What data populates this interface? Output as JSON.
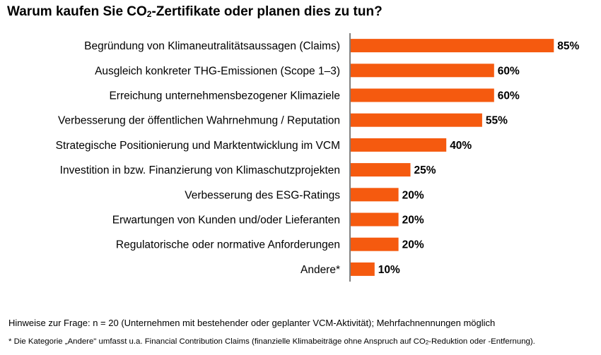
{
  "title_parts": {
    "pre": "Warum kaufen Sie CO",
    "sub": "2",
    "post": "-Zertifikate oder planen dies zu tun?"
  },
  "chart_data": {
    "type": "bar",
    "orientation": "horizontal",
    "title": "Warum kaufen Sie CO₂-Zertifikate oder planen dies zu tun?",
    "categories": [
      "Begründung von Klimaneutralitätsaussagen (Claims)",
      "Ausgleich konkreter THG-Emissionen (Scope 1–3)",
      "Erreichung unternehmensbezogener Klimaziele",
      "Verbesserung der öffentlichen Wahrnehmung / Reputation",
      "Strategische Positionierung und Marktentwicklung im VCM",
      "Investition in bzw. Finanzierung von Klimaschutzprojekten",
      "Verbesserung des ESG-Ratings",
      "Erwartungen von Kunden und/oder Lieferanten",
      "Regulatorische oder normative Anforderungen",
      "Andere*"
    ],
    "values": [
      85,
      60,
      60,
      55,
      40,
      25,
      20,
      20,
      20,
      10
    ],
    "value_labels": [
      "85%",
      "60%",
      "60%",
      "55%",
      "40%",
      "25%",
      "20%",
      "20%",
      "20%",
      "10%"
    ],
    "unit": "%",
    "xlim": [
      0,
      100
    ],
    "grid": false,
    "legend": "none",
    "bar_color": "#f55a0f"
  },
  "notes": {
    "question": "Hinweise zur Frage: n = 20 (Unternehmen mit bestehender oder geplanter VCM-Aktivität); Mehrfachnennungen möglich",
    "footnote_parts": {
      "pre": "* Die Kategorie „Andere\" umfasst u.a. Financial Contribution Claims (finanzielle Klimabeiträge ohne Anspruch auf CO",
      "sub": "2",
      "post": "-Reduktion oder -Entfernung)."
    }
  }
}
